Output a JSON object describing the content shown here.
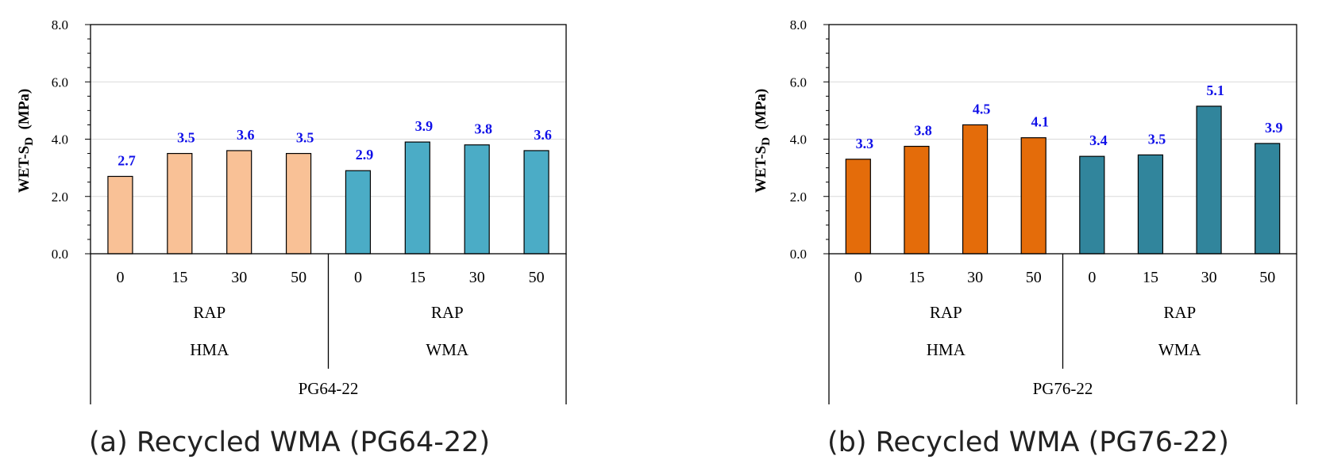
{
  "chart_data": [
    {
      "type": "bar",
      "caption": "(a) Recycled WMA (PG64-22)",
      "ylabel": "WET-S",
      "ylabel_sub": "D",
      "ylabel_unit": "(MPa)",
      "ylim": [
        0,
        8
      ],
      "yticks": [
        "0.0",
        "2.0",
        "4.0",
        "6.0",
        "8.0"
      ],
      "grid": true,
      "categories": [
        "0",
        "15",
        "30",
        "50",
        "0",
        "15",
        "30",
        "50"
      ],
      "values": [
        2.7,
        3.5,
        3.6,
        3.5,
        2.9,
        3.9,
        3.8,
        3.6
      ],
      "data_labels": [
        "2.7",
        "3.5",
        "3.6",
        "3.5",
        "2.9",
        "3.9",
        "3.8",
        "3.6"
      ],
      "groups": [
        {
          "name": "HMA",
          "sub": "RAP",
          "color": "#F9C196"
        },
        {
          "name": "WMA",
          "sub": "RAP",
          "color": "#4BACC6"
        }
      ],
      "binder": "PG64-22"
    },
    {
      "type": "bar",
      "caption": "(b) Recycled WMA (PG76-22)",
      "ylabel": "WET-S",
      "ylabel_sub": "D",
      "ylabel_unit": "(MPa)",
      "ylim": [
        0,
        8
      ],
      "yticks": [
        "0.0",
        "2.0",
        "4.0",
        "6.0",
        "8.0"
      ],
      "grid": true,
      "categories": [
        "0",
        "15",
        "30",
        "50",
        "0",
        "15",
        "30",
        "50"
      ],
      "values": [
        3.3,
        3.75,
        4.5,
        4.05,
        3.4,
        3.45,
        5.15,
        3.85
      ],
      "data_labels": [
        "3.3",
        "3.8",
        "4.5",
        "4.1",
        "3.4",
        "3.5",
        "5.1",
        "3.9"
      ],
      "groups": [
        {
          "name": "HMA",
          "sub": "RAP",
          "color": "#E46C0A"
        },
        {
          "name": "WMA",
          "sub": "RAP",
          "color": "#31859C"
        }
      ],
      "binder": "PG76-22"
    }
  ]
}
